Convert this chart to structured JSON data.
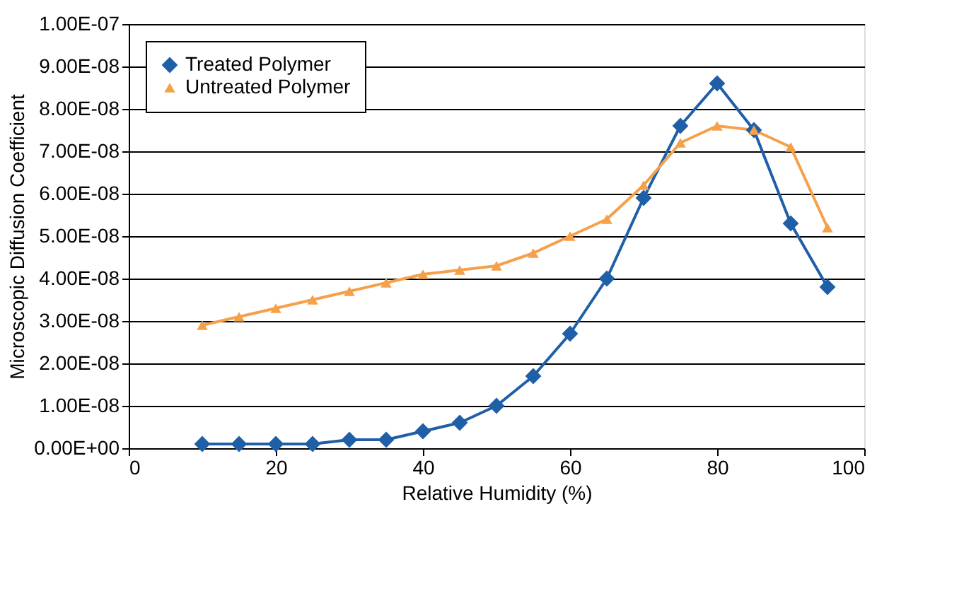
{
  "chart_data": {
    "type": "line",
    "xlabel": "Relative Humidity (%)",
    "ylabel": "Microscopic Diffusion Coefficient",
    "xlim": [
      0,
      100
    ],
    "xticks": [
      0,
      20,
      40,
      60,
      80,
      100
    ],
    "ylim": [
      0,
      1e-07
    ],
    "yticks": [
      {
        "value": 0,
        "label": "0.00E+00"
      },
      {
        "value": 1e-08,
        "label": "1.00E-08"
      },
      {
        "value": 2e-08,
        "label": "2.00E-08"
      },
      {
        "value": 3e-08,
        "label": "3.00E-08"
      },
      {
        "value": 4e-08,
        "label": "4.00E-08"
      },
      {
        "value": 5e-08,
        "label": "5.00E-08"
      },
      {
        "value": 6e-08,
        "label": "6.00E-08"
      },
      {
        "value": 7e-08,
        "label": "7.00E-08"
      },
      {
        "value": 8e-08,
        "label": "8.00E-08"
      },
      {
        "value": 9e-08,
        "label": "9.00E-08"
      },
      {
        "value": 1e-07,
        "label": "1.00E-07"
      }
    ],
    "grid": "y",
    "legend": "top left",
    "x": [
      10,
      15,
      20,
      25,
      30,
      35,
      40,
      45,
      50,
      55,
      60,
      65,
      70,
      75,
      80,
      85,
      90,
      95
    ],
    "series": [
      {
        "name": "Treated Polymer",
        "color": "#1f5fa8",
        "marker": "diamond",
        "values": [
          1e-09,
          1e-09,
          1e-09,
          1e-09,
          2e-09,
          2e-09,
          4e-09,
          6e-09,
          1e-08,
          1.7e-08,
          2.7e-08,
          4e-08,
          5.9e-08,
          7.6e-08,
          8.6e-08,
          7.5e-08,
          5.3e-08,
          3.8e-08
        ]
      },
      {
        "name": "Untreated Polymer",
        "color": "#f5a04a",
        "marker": "triangle",
        "values": [
          2.9e-08,
          3.1e-08,
          3.3e-08,
          3.5e-08,
          3.7e-08,
          3.9e-08,
          4.1e-08,
          4.2e-08,
          4.3e-08,
          4.6e-08,
          5e-08,
          5.4e-08,
          6.2e-08,
          7.2e-08,
          7.6e-08,
          7.5e-08,
          7.1e-08,
          5.2e-08
        ]
      }
    ]
  }
}
